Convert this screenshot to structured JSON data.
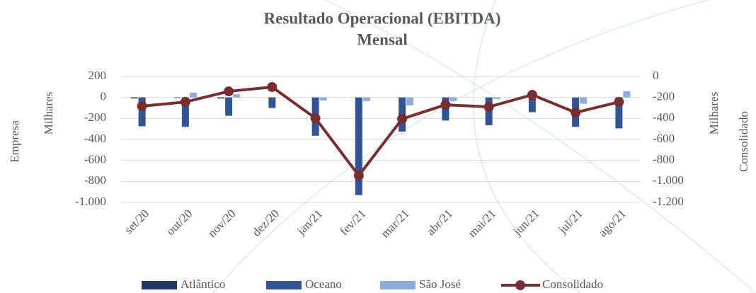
{
  "chart_data": {
    "type": "bar",
    "title": [
      "Resultado Operacional (EBITDA)",
      "Mensal"
    ],
    "y_label": "Empresa",
    "y_unit": "Milhares",
    "y2_label": "Consolidado",
    "y2_unit": "Milhares",
    "categories": [
      "set/20",
      "out/20",
      "nov/20",
      "dez/20",
      "jan/21",
      "fev/21",
      "mar/21",
      "abr/21",
      "mai/21",
      "jun/21",
      "jul/21",
      "ago/21"
    ],
    "series": [
      {
        "name": "Atlântico",
        "type": "bar",
        "color": "#1f3864",
        "values": [
          -10,
          -5,
          -10,
          0,
          0,
          0,
          0,
          0,
          0,
          0,
          0,
          0
        ]
      },
      {
        "name": "Oceano",
        "type": "bar",
        "color": "#2f5597",
        "values": [
          -275,
          -280,
          -175,
          -100,
          -365,
          -930,
          -325,
          -220,
          -265,
          -140,
          -280,
          -295
        ]
      },
      {
        "name": "São  José",
        "type": "bar",
        "color": "#8faadc",
        "values": [
          0,
          45,
          30,
          0,
          -30,
          -35,
          -75,
          -35,
          -15,
          0,
          -60,
          60
        ]
      },
      {
        "name": "Consolidado",
        "type": "line",
        "axis": "y2",
        "color": "#7b2c2f",
        "values": [
          -283,
          -243,
          -142,
          -101,
          -398,
          -944,
          -404,
          -270,
          -290,
          -175,
          -344,
          -243
        ]
      }
    ],
    "ylim": [
      -1000,
      200
    ],
    "yticks": [
      200,
      0,
      -200,
      -400,
      -600,
      -800,
      {
        "value": -1000,
        "label": "-1.000"
      }
    ],
    "y2lim": [
      -1200,
      0
    ],
    "y2ticks": [
      0,
      -200,
      -400,
      -600,
      -800,
      {
        "value": -1000,
        "label": "-1.000"
      },
      {
        "value": -1200,
        "label": "-1.200"
      }
    ],
    "grid": true
  }
}
